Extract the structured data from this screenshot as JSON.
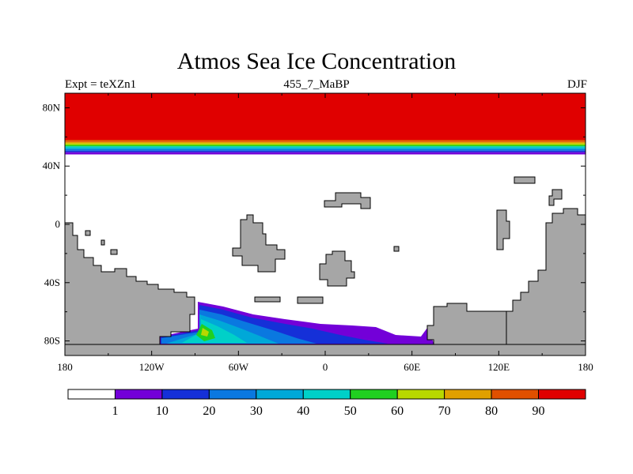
{
  "chart_data": {
    "type": "heatmap",
    "title": "Atmos Sea Ice Concentration",
    "subtitle_left": "Expt = teXZn1",
    "subtitle_center": "455_7_MaBP",
    "subtitle_right": "DJF",
    "x_ticks": [
      "180",
      "120W",
      "60W",
      "0",
      "60E",
      "120E",
      "180"
    ],
    "x_tick_values": [
      -180,
      -120,
      -60,
      0,
      60,
      120,
      180
    ],
    "y_ticks": [
      "80N",
      "40N",
      "0",
      "40S",
      "80S"
    ],
    "y_tick_values": [
      80,
      40,
      0,
      -40,
      -80
    ],
    "xlim": [
      -180,
      180
    ],
    "ylim": [
      -90,
      90
    ],
    "units": "%",
    "colorbar": {
      "levels": [
        "1",
        "10",
        "20",
        "30",
        "40",
        "50",
        "60",
        "70",
        "80",
        "90"
      ],
      "colors": [
        "#ffffff",
        "#7300d8",
        "#1530d8",
        "#0a78e0",
        "#00a8d8",
        "#00d0c8",
        "#20d020",
        "#b8d800",
        "#e0a000",
        "#e05000",
        "#e00000"
      ]
    },
    "arctic_ice_band": [
      {
        "lat_min": 58,
        "lat_max": 90,
        "value": 95
      },
      {
        "lat_min": 56.5,
        "lat_max": 58,
        "value": 85
      },
      {
        "lat_min": 55.5,
        "lat_max": 56.5,
        "value": 75
      },
      {
        "lat_min": 54.5,
        "lat_max": 55.5,
        "value": 65
      },
      {
        "lat_min": 53.5,
        "lat_max": 54.5,
        "value": 55
      },
      {
        "lat_min": 52.5,
        "lat_max": 53.5,
        "value": 45
      },
      {
        "lat_min": 51.5,
        "lat_max": 52.5,
        "value": 35
      },
      {
        "lat_min": 50.5,
        "lat_max": 51.5,
        "value": 25
      },
      {
        "lat_min": 49.5,
        "lat_max": 50.5,
        "value": 15
      },
      {
        "lat_min": 48,
        "lat_max": 49.5,
        "value": 5
      }
    ],
    "southern_ice_region": {
      "lon_range": [
        -135,
        75
      ],
      "lat_range": [
        -82,
        -55
      ],
      "max_value": 60
    }
  }
}
